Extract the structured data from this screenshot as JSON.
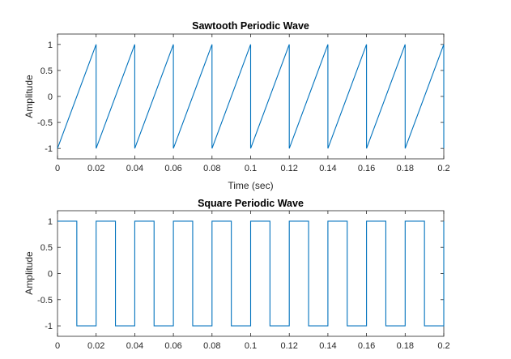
{
  "chart_data": [
    {
      "type": "line",
      "title": "Sawtooth Periodic Wave",
      "xlabel": "Time (sec)",
      "ylabel": "Amplitude",
      "xlim": [
        0,
        0.2
      ],
      "ylim": [
        -1.2,
        1.2
      ],
      "xticks": [
        "0",
        "0.02",
        "0.04",
        "0.06",
        "0.08",
        "0.1",
        "0.12",
        "0.14",
        "0.16",
        "0.18",
        "0.2"
      ],
      "yticks": [
        "1",
        "0.5",
        "0",
        "-0.5",
        "-1"
      ],
      "grid": false,
      "series": [
        {
          "color": "#0072bd",
          "x": [
            0,
            0.02,
            0.02,
            0.04,
            0.04,
            0.06,
            0.06,
            0.08,
            0.08,
            0.1,
            0.1,
            0.12,
            0.12,
            0.14,
            0.14,
            0.16,
            0.16,
            0.18,
            0.18,
            0.2,
            0.2
          ],
          "y": [
            -1,
            1,
            -1,
            1,
            -1,
            1,
            -1,
            1,
            -1,
            1,
            -1,
            1,
            -1,
            1,
            -1,
            1,
            -1,
            1,
            -1,
            1,
            -1
          ]
        }
      ]
    },
    {
      "type": "line",
      "title": "Square Periodic Wave",
      "xlabel": "",
      "ylabel": "Amplitude",
      "xlim": [
        0,
        0.2
      ],
      "ylim": [
        -1.2,
        1.2
      ],
      "xticks": [
        "0",
        "0.02",
        "0.04",
        "0.06",
        "0.08",
        "0.1",
        "0.12",
        "0.14",
        "0.16",
        "0.18",
        "0.2"
      ],
      "yticks": [
        "1",
        "0.5",
        "0",
        "-0.5",
        "-1"
      ],
      "grid": false,
      "series": [
        {
          "color": "#0072bd",
          "x": [
            0,
            0.01,
            0.01,
            0.02,
            0.02,
            0.03,
            0.03,
            0.04,
            0.04,
            0.05,
            0.05,
            0.06,
            0.06,
            0.07,
            0.07,
            0.08,
            0.08,
            0.09,
            0.09,
            0.1,
            0.1,
            0.11,
            0.11,
            0.12,
            0.12,
            0.13,
            0.13,
            0.14,
            0.14,
            0.15,
            0.15,
            0.16,
            0.16,
            0.17,
            0.17,
            0.18,
            0.18,
            0.19,
            0.19,
            0.2,
            0.2
          ],
          "y": [
            1,
            1,
            -1,
            -1,
            1,
            1,
            -1,
            -1,
            1,
            1,
            -1,
            -1,
            1,
            1,
            -1,
            -1,
            1,
            1,
            -1,
            -1,
            1,
            1,
            -1,
            -1,
            1,
            1,
            -1,
            -1,
            1,
            1,
            -1,
            -1,
            1,
            1,
            -1,
            -1,
            1,
            1,
            -1,
            -1,
            1
          ]
        }
      ]
    }
  ]
}
